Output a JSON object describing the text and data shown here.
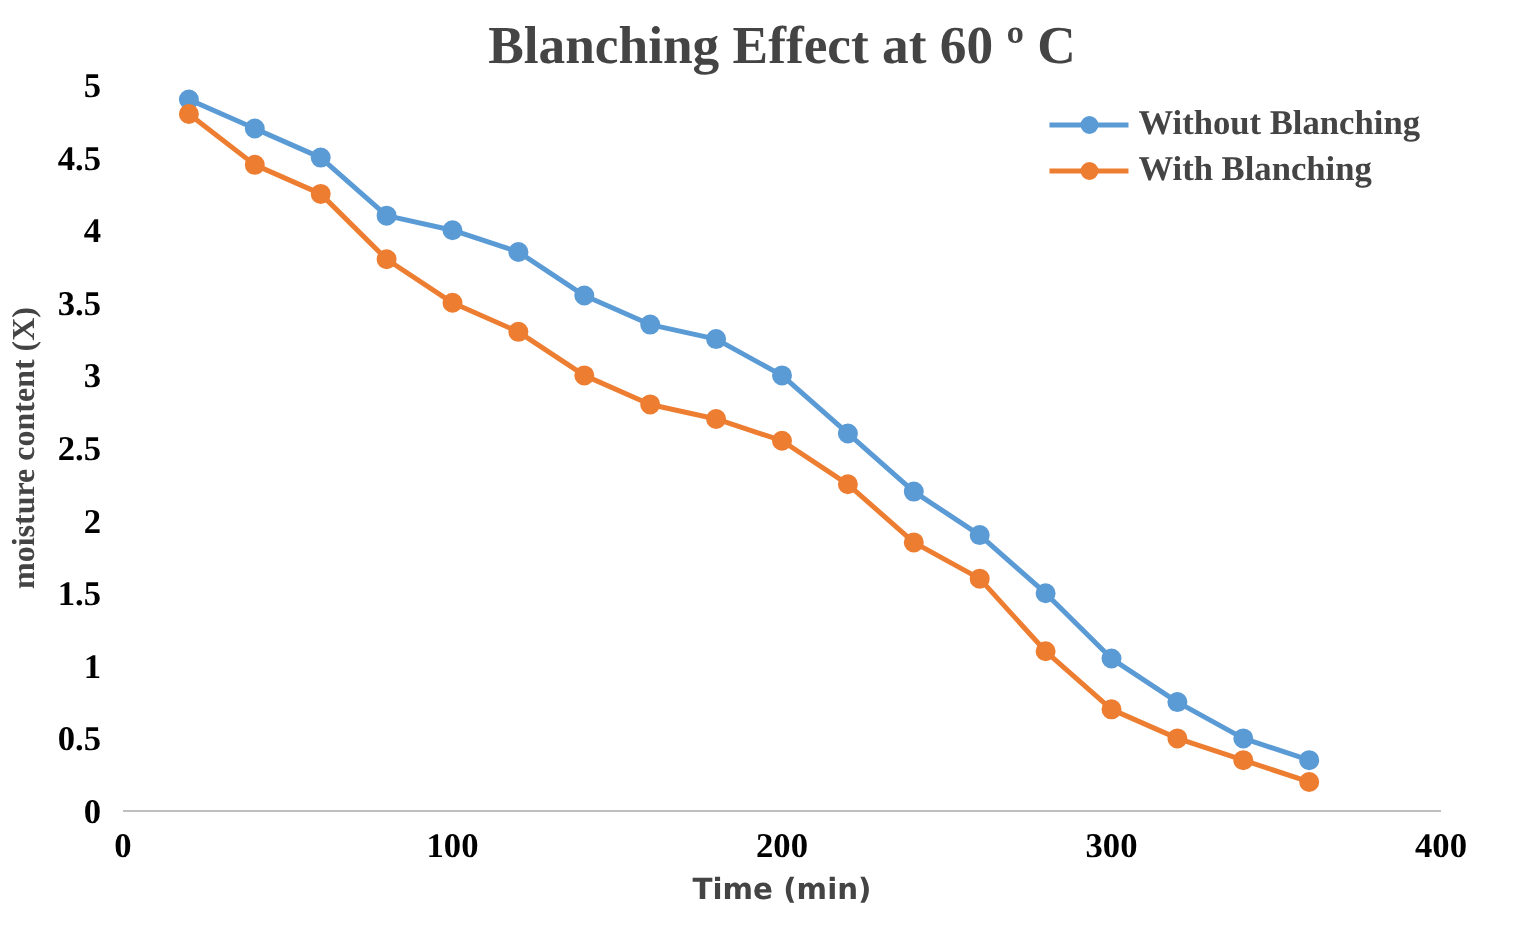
{
  "chart_data": {
    "type": "line",
    "title": "Blanching Effect at 60 º C",
    "xlabel": "Time (min)",
    "ylabel": "moisture content (X)",
    "x": [
      20,
      40,
      60,
      80,
      100,
      120,
      140,
      160,
      180,
      200,
      220,
      240,
      260,
      280,
      300,
      320,
      340,
      360
    ],
    "series": [
      {
        "name": "Without Blanching",
        "color": "#5b9bd5",
        "values": [
          4.9,
          4.7,
          4.5,
          4.1,
          4.0,
          3.85,
          3.55,
          3.35,
          3.25,
          3.0,
          2.6,
          2.2,
          1.9,
          1.5,
          1.05,
          0.75,
          0.5,
          0.35
        ]
      },
      {
        "name": "With Blanching",
        "color": "#ed7d31",
        "values": [
          4.8,
          4.45,
          4.25,
          3.8,
          3.5,
          3.3,
          3.0,
          2.8,
          2.7,
          2.55,
          2.25,
          1.85,
          1.6,
          1.1,
          0.7,
          0.5,
          0.35,
          0.2
        ]
      }
    ],
    "xlim": [
      0,
      400
    ],
    "xticks": [
      0,
      100,
      200,
      300,
      400
    ],
    "ylim": [
      0,
      5
    ],
    "yticks": [
      0,
      0.5,
      1,
      1.5,
      2,
      2.5,
      3,
      3.5,
      4,
      4.5,
      5
    ],
    "grid": false,
    "legend": "top right",
    "marker": "circle",
    "line_style": "solid"
  }
}
